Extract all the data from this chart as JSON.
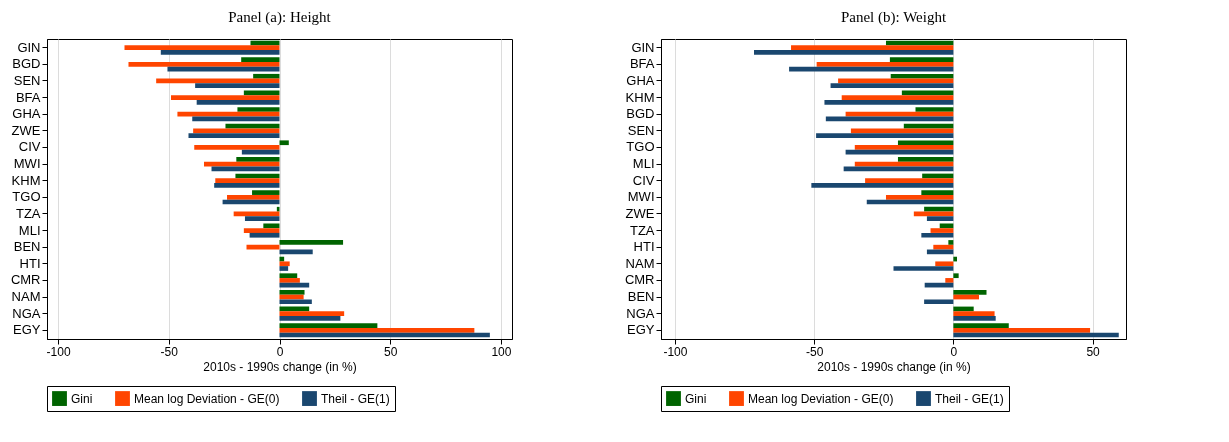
{
  "chart_data": [
    {
      "type": "bar",
      "orientation": "horizontal",
      "title": "Panel (a): Height",
      "xlabel": "2010s - 1990s change (in %)",
      "categories": [
        "GIN",
        "BGD",
        "SEN",
        "BFA",
        "GHA",
        "ZWE",
        "CIV",
        "MWI",
        "KHM",
        "TGO",
        "TZA",
        "MLI",
        "BEN",
        "HTI",
        "CMR",
        "NAM",
        "NGA",
        "EGY"
      ],
      "series": [
        {
          "name": "Gini",
          "color": "#006400",
          "values": [
            -13.1,
            -17.3,
            -11.9,
            -16.1,
            -19,
            -24.4,
            4.2,
            -19.5,
            -19.9,
            -12.4,
            -1.2,
            -7.3,
            28.7,
            2.1,
            8,
            11.3,
            13.4,
            44.2
          ]
        },
        {
          "name": "Mean log Deviation - GE(0)",
          "color": "#ff4500",
          "values": [
            -70,
            -68.2,
            -55.7,
            -49,
            -46.1,
            -39,
            -38.5,
            -34.1,
            -29,
            -23.7,
            -20.7,
            -16.1,
            -14.9,
            4.6,
            9.2,
            10.9,
            29.2,
            88
          ]
        },
        {
          "name": "Theil - GE(1)",
          "color": "#1a476f",
          "values": [
            -53.6,
            -50.6,
            -38.1,
            -37.4,
            -39.4,
            -41.1,
            -17,
            -30.7,
            -29.5,
            -25.7,
            -15.6,
            -13.5,
            15,
            3.9,
            13.4,
            14.6,
            27.5,
            95
          ]
        }
      ],
      "xlim": [
        -105,
        105
      ],
      "xticks": [
        -100,
        -50,
        0,
        50,
        100
      ],
      "grid": "x",
      "legend": "bottom"
    },
    {
      "type": "bar",
      "orientation": "horizontal",
      "title": "Panel (b): Weight",
      "xlabel": "2010s - 1990s change (in %)",
      "categories": [
        "GIN",
        "BFA",
        "GHA",
        "KHM",
        "BGD",
        "SEN",
        "TGO",
        "MLI",
        "CIV",
        "MWI",
        "ZWE",
        "TZA",
        "HTI",
        "NAM",
        "CMR",
        "BEN",
        "NGA",
        "EGY"
      ],
      "series": [
        {
          "name": "Gini",
          "color": "#006400",
          "values": [
            -24.2,
            -22.8,
            -22.5,
            -18.5,
            -13.6,
            -17.8,
            -19.9,
            -19.9,
            -11.2,
            -11.5,
            -10.5,
            -4.9,
            -1.8,
            1.3,
            1.9,
            11.9,
            7.3,
            19.9
          ]
        },
        {
          "name": "Mean log Deviation - GE(0)",
          "color": "#ff4500",
          "values": [
            -58.3,
            -49.1,
            -41.4,
            -40.1,
            -38.7,
            -36.8,
            -35.4,
            -35.4,
            -31.7,
            -24.2,
            -14.2,
            -8.2,
            -7.2,
            -6.5,
            -2.9,
            9.2,
            14.8,
            49.1
          ]
        },
        {
          "name": "Theil - GE(1)",
          "color": "#1a476f",
          "values": [
            -71.6,
            -59,
            -44.1,
            -46.3,
            -45.8,
            -49.3,
            -38.7,
            -39.4,
            -51,
            -31.1,
            -9.5,
            -11.5,
            -9.5,
            -21.5,
            -10.3,
            -10.5,
            15.2,
            59.4
          ]
        }
      ],
      "xlim": [
        -105,
        62
      ],
      "xticks": [
        -100,
        -50,
        0,
        50
      ],
      "grid": "x",
      "legend": "bottom"
    }
  ]
}
